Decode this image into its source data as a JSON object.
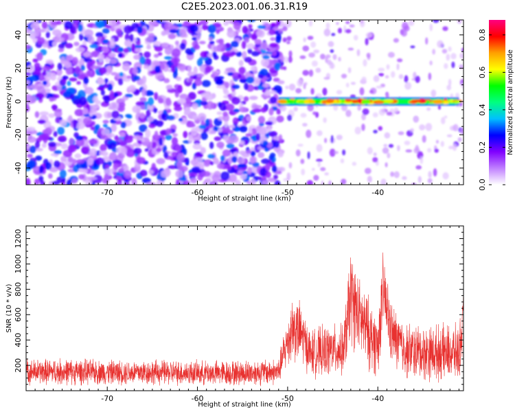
{
  "title": "C2E5.2023.001.06.31.R19",
  "chart_data": [
    {
      "type": "heatmap",
      "xlabel": "Height of straight line (km)",
      "ylabel": "Frequency (Hz)",
      "xlim": [
        -79,
        -30.5
      ],
      "ylim": [
        -50,
        49
      ],
      "xticks": [
        -70,
        -60,
        -50,
        -40
      ],
      "yticks": [
        40,
        20,
        0,
        -20,
        -40
      ],
      "colorbar": {
        "label": "Normalized spectral amplitude",
        "range": [
          0.0,
          0.88
        ],
        "ticks": [
          0.0,
          0.2,
          0.4,
          0.6,
          0.8
        ],
        "colormap": [
          "#ffffff",
          "#c080ff",
          "#8000ff",
          "#0000ff",
          "#00c0ff",
          "#00ff80",
          "#00ff00",
          "#ffff00",
          "#ffa000",
          "#ff0000",
          "#ff0080"
        ]
      },
      "signal_band": {
        "frequency_hz": 0,
        "x_start_km": -51,
        "x_end_km": -31,
        "peak_amplitude": 0.85
      },
      "noise_background_amplitude": 0.15
    },
    {
      "type": "line",
      "xlabel": "Height of straight line (km)",
      "ylabel": "SNR (10 * v/v)",
      "xlim": [
        -79,
        -30.5
      ],
      "ylim": [
        0,
        1300
      ],
      "xticks": [
        -70,
        -60,
        -50,
        -40
      ],
      "yticks": [
        200,
        400,
        600,
        800,
        1000,
        1200
      ],
      "color": "#e8312f",
      "envelope": [
        {
          "x": -79,
          "mean": 150,
          "amp": 110
        },
        {
          "x": -75,
          "mean": 150,
          "amp": 120
        },
        {
          "x": -70,
          "mean": 145,
          "amp": 110
        },
        {
          "x": -65,
          "mean": 145,
          "amp": 115
        },
        {
          "x": -60,
          "mean": 140,
          "amp": 110
        },
        {
          "x": -55,
          "mean": 140,
          "amp": 115
        },
        {
          "x": -51,
          "mean": 150,
          "amp": 120
        },
        {
          "x": -50.5,
          "mean": 280,
          "amp": 180
        },
        {
          "x": -49.5,
          "mean": 500,
          "amp": 300
        },
        {
          "x": -48.5,
          "mean": 450,
          "amp": 280
        },
        {
          "x": -47.5,
          "mean": 300,
          "amp": 200
        },
        {
          "x": -46.5,
          "mean": 300,
          "amp": 230
        },
        {
          "x": -45,
          "mean": 320,
          "amp": 230
        },
        {
          "x": -43.8,
          "mean": 320,
          "amp": 230
        },
        {
          "x": -43,
          "mean": 750,
          "amp": 450
        },
        {
          "x": -42.2,
          "mean": 600,
          "amp": 350
        },
        {
          "x": -41,
          "mean": 450,
          "amp": 330
        },
        {
          "x": -40,
          "mean": 350,
          "amp": 280
        },
        {
          "x": -39.4,
          "mean": 800,
          "amp": 350
        },
        {
          "x": -38.5,
          "mean": 450,
          "amp": 280
        },
        {
          "x": -37,
          "mean": 320,
          "amp": 250
        },
        {
          "x": -35,
          "mean": 300,
          "amp": 250
        },
        {
          "x": -33,
          "mean": 300,
          "amp": 250
        },
        {
          "x": -31,
          "mean": 300,
          "amp": 250
        },
        {
          "x": -30.5,
          "mean": 550,
          "amp": 250
        }
      ]
    }
  ]
}
